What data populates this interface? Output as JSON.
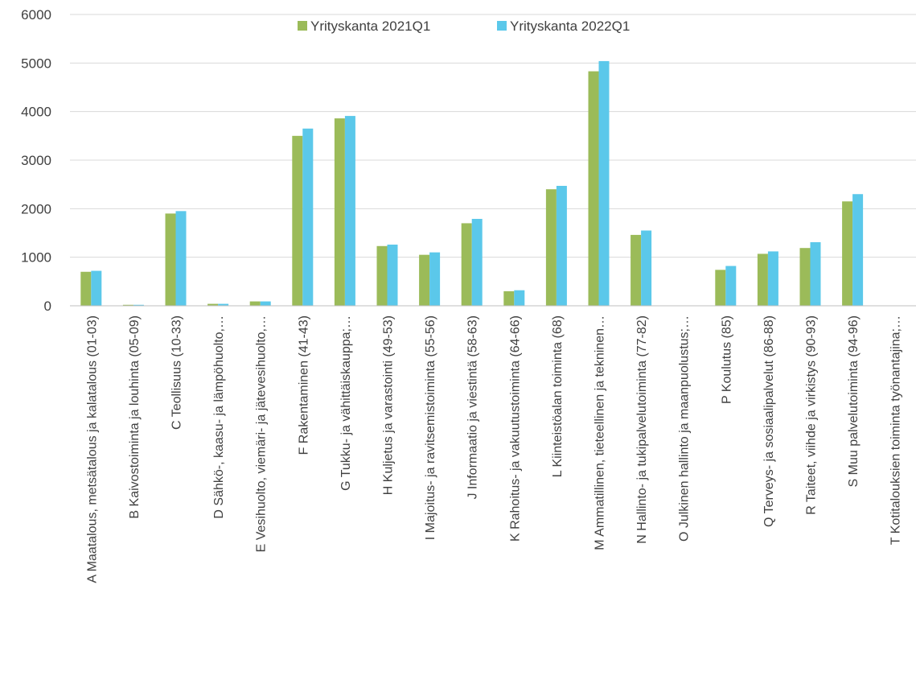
{
  "chart_data": {
    "type": "bar",
    "title": "",
    "xlabel": "",
    "ylabel": "",
    "ylim": [
      0,
      6000
    ],
    "yticks": [
      0,
      1000,
      2000,
      3000,
      4000,
      5000,
      6000
    ],
    "grid": true,
    "legend_position": "top-center",
    "categories": [
      "A Maatalous, metsätalous ja kalatalous (01-03)",
      "B Kaivostoiminta ja louhinta (05-09)",
      "C Teollisuus (10-33)",
      "D Sähkö-, kaasu- ja lämpöhuolto,…",
      "E Vesihuolto, viemäri- ja jätevesihuolto,…",
      "F Rakentaminen (41-43)",
      "G Tukku- ja vähittäiskauppa;…",
      "H Kuljetus ja varastointi (49-53)",
      "I Majoitus- ja ravitsemistoiminta (55-56)",
      "J Informaatio ja viestintä (58-63)",
      "K Rahoitus- ja vakuutustoiminta (64-66)",
      "L Kiinteistöalan toiminta (68)",
      "M Ammatillinen, tieteellinen ja tekninen…",
      "N Hallinto- ja tukipalvelutoiminta (77-82)",
      "O Julkinen hallinto ja maanpuolustus;…",
      "P Koulutus (85)",
      "Q Terveys- ja sosiaalipalvelut (86-88)",
      "R Taiteet, viihde ja virkistys (90-93)",
      "S Muu palvelutoiminta (94-96)",
      "T Kotitalouksien toiminta työnantajina;…"
    ],
    "series": [
      {
        "name": "Yrityskanta 2021Q1",
        "color": "#9BBB59",
        "values": [
          700,
          20,
          1900,
          40,
          90,
          3500,
          3860,
          1230,
          1050,
          1700,
          300,
          2400,
          4830,
          1460,
          5,
          740,
          1070,
          1190,
          2150,
          5
        ]
      },
      {
        "name": "Yrityskanta 2022Q1",
        "color": "#5BC8EA",
        "values": [
          720,
          20,
          1950,
          40,
          90,
          3650,
          3910,
          1260,
          1100,
          1790,
          320,
          2470,
          5040,
          1550,
          5,
          820,
          1120,
          1310,
          2300,
          5
        ]
      }
    ]
  }
}
